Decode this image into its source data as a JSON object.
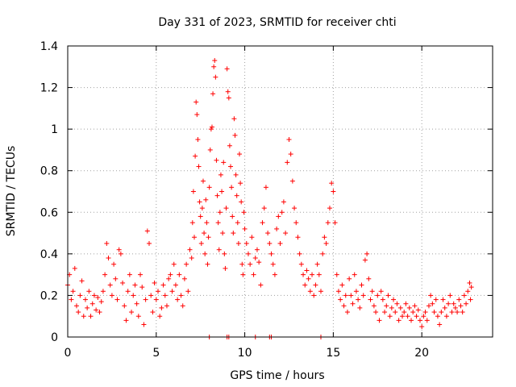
{
  "chart_data": {
    "type": "scatter",
    "title": "Day 331 of 2023, SRMTID for receiver chti",
    "xlabel": "GPS time / hours",
    "ylabel": "SRMTID / TECUs",
    "xlim": [
      0,
      24
    ],
    "ylim": [
      0,
      1.4
    ],
    "xticks": [
      0,
      5,
      10,
      15,
      20
    ],
    "xtick_labels": [
      "0",
      "5",
      "10",
      "15",
      "20"
    ],
    "yticks": [
      0,
      0.2,
      0.4,
      0.6,
      0.8,
      1.0,
      1.2,
      1.4
    ],
    "ytick_labels": [
      "0",
      "0.2",
      "0.4",
      "0.6",
      "0.8",
      "1",
      "1.2",
      "1.4"
    ],
    "grid": true,
    "marker": "+",
    "color": "#ff0000",
    "series": [
      {
        "name": "SRMTID",
        "points": [
          [
            0.0,
            0.25
          ],
          [
            0.1,
            0.3
          ],
          [
            0.2,
            0.18
          ],
          [
            0.3,
            0.22
          ],
          [
            0.4,
            0.33
          ],
          [
            0.5,
            0.15
          ],
          [
            0.6,
            0.12
          ],
          [
            0.7,
            0.2
          ],
          [
            0.8,
            0.27
          ],
          [
            0.9,
            0.1
          ],
          [
            1.0,
            0.18
          ],
          [
            1.1,
            0.14
          ],
          [
            1.2,
            0.22
          ],
          [
            1.3,
            0.1
          ],
          [
            1.4,
            0.16
          ],
          [
            1.5,
            0.2
          ],
          [
            1.6,
            0.13
          ],
          [
            1.7,
            0.19
          ],
          [
            1.8,
            0.12
          ],
          [
            1.9,
            0.17
          ],
          [
            2.0,
            0.22
          ],
          [
            2.1,
            0.3
          ],
          [
            2.2,
            0.45
          ],
          [
            2.3,
            0.38
          ],
          [
            2.4,
            0.25
          ],
          [
            2.5,
            0.2
          ],
          [
            2.6,
            0.35
          ],
          [
            2.7,
            0.28
          ],
          [
            2.8,
            0.18
          ],
          [
            2.9,
            0.42
          ],
          [
            3.0,
            0.4
          ],
          [
            3.1,
            0.26
          ],
          [
            3.2,
            0.15
          ],
          [
            3.3,
            0.08
          ],
          [
            3.4,
            0.22
          ],
          [
            3.5,
            0.3
          ],
          [
            3.6,
            0.12
          ],
          [
            3.7,
            0.2
          ],
          [
            3.8,
            0.25
          ],
          [
            3.9,
            0.16
          ],
          [
            4.0,
            0.1
          ],
          [
            4.1,
            0.3
          ],
          [
            4.2,
            0.24
          ],
          [
            4.3,
            0.06
          ],
          [
            4.4,
            0.18
          ],
          [
            4.5,
            0.51
          ],
          [
            4.6,
            0.45
          ],
          [
            4.7,
            0.2
          ],
          [
            4.8,
            0.12
          ],
          [
            4.9,
            0.26
          ],
          [
            5.0,
            0.18
          ],
          [
            5.1,
            0.22
          ],
          [
            5.2,
            0.1
          ],
          [
            5.3,
            0.14
          ],
          [
            5.4,
            0.25
          ],
          [
            5.5,
            0.2
          ],
          [
            5.6,
            0.15
          ],
          [
            5.7,
            0.28
          ],
          [
            5.8,
            0.3
          ],
          [
            5.9,
            0.22
          ],
          [
            6.0,
            0.35
          ],
          [
            6.1,
            0.25
          ],
          [
            6.2,
            0.18
          ],
          [
            6.3,
            0.3
          ],
          [
            6.4,
            0.2
          ],
          [
            6.5,
            0.15
          ],
          [
            6.6,
            0.28
          ],
          [
            6.7,
            0.35
          ],
          [
            6.8,
            0.22
          ],
          [
            6.9,
            0.42
          ],
          [
            7.0,
            0.38
          ],
          [
            7.05,
            0.55
          ],
          [
            7.1,
            0.7
          ],
          [
            7.15,
            0.48
          ],
          [
            7.2,
            0.87
          ],
          [
            7.25,
            1.13
          ],
          [
            7.3,
            1.07
          ],
          [
            7.35,
            0.95
          ],
          [
            7.4,
            0.82
          ],
          [
            7.45,
            0.65
          ],
          [
            7.5,
            0.58
          ],
          [
            7.55,
            0.45
          ],
          [
            7.6,
            0.62
          ],
          [
            7.65,
            0.75
          ],
          [
            7.7,
            0.5
          ],
          [
            7.75,
            0.4
          ],
          [
            7.8,
            0.66
          ],
          [
            7.85,
            0.55
          ],
          [
            7.9,
            0.35
          ],
          [
            7.95,
            0.48
          ],
          [
            8.0,
            0.72
          ],
          [
            8.05,
            0.9
          ],
          [
            8.1,
            1.0
          ],
          [
            8.15,
            1.01
          ],
          [
            8.2,
            1.17
          ],
          [
            8.25,
            1.3
          ],
          [
            8.3,
            1.33
          ],
          [
            8.35,
            1.25
          ],
          [
            8.4,
            0.85
          ],
          [
            8.45,
            0.68
          ],
          [
            8.5,
            0.55
          ],
          [
            8.55,
            0.42
          ],
          [
            8.6,
            0.6
          ],
          [
            8.65,
            0.78
          ],
          [
            8.7,
            0.7
          ],
          [
            8.75,
            0.5
          ],
          [
            8.8,
            0.84
          ],
          [
            8.85,
            0.4
          ],
          [
            8.9,
            0.33
          ],
          [
            8.95,
            0.62
          ],
          [
            9.0,
            1.29
          ],
          [
            9.05,
            1.18
          ],
          [
            9.1,
            1.15
          ],
          [
            9.15,
            0.92
          ],
          [
            9.2,
            0.82
          ],
          [
            9.25,
            0.72
          ],
          [
            9.3,
            0.58
          ],
          [
            9.35,
            0.5
          ],
          [
            9.4,
            1.05
          ],
          [
            9.45,
            0.97
          ],
          [
            9.5,
            0.78
          ],
          [
            9.55,
            0.68
          ],
          [
            9.6,
            0.55
          ],
          [
            9.65,
            0.45
          ],
          [
            9.7,
            0.88
          ],
          [
            9.75,
            0.74
          ],
          [
            9.8,
            0.65
          ],
          [
            9.85,
            0.35
          ],
          [
            9.9,
            0.3
          ],
          [
            9.95,
            0.6
          ],
          [
            10.0,
            0.52
          ],
          [
            10.1,
            0.45
          ],
          [
            10.2,
            0.4
          ],
          [
            10.3,
            0.35
          ],
          [
            10.4,
            0.48
          ],
          [
            10.5,
            0.3
          ],
          [
            10.6,
            0.38
          ],
          [
            10.7,
            0.42
          ],
          [
            10.8,
            0.36
          ],
          [
            10.9,
            0.25
          ],
          [
            11.0,
            0.55
          ],
          [
            11.1,
            0.62
          ],
          [
            11.2,
            0.72
          ],
          [
            11.3,
            0.5
          ],
          [
            11.4,
            0.45
          ],
          [
            11.5,
            0.4
          ],
          [
            11.6,
            0.35
          ],
          [
            11.7,
            0.3
          ],
          [
            11.8,
            0.52
          ],
          [
            11.9,
            0.58
          ],
          [
            12.0,
            0.45
          ],
          [
            12.1,
            0.6
          ],
          [
            12.2,
            0.65
          ],
          [
            12.3,
            0.5
          ],
          [
            12.4,
            0.84
          ],
          [
            12.5,
            0.95
          ],
          [
            12.6,
            0.88
          ],
          [
            12.7,
            0.75
          ],
          [
            12.8,
            0.62
          ],
          [
            12.9,
            0.55
          ],
          [
            13.0,
            0.48
          ],
          [
            13.1,
            0.4
          ],
          [
            13.2,
            0.35
          ],
          [
            13.3,
            0.3
          ],
          [
            13.4,
            0.25
          ],
          [
            13.5,
            0.32
          ],
          [
            13.6,
            0.28
          ],
          [
            13.7,
            0.22
          ],
          [
            13.8,
            0.3
          ],
          [
            13.9,
            0.2
          ],
          [
            14.0,
            0.25
          ],
          [
            14.1,
            0.35
          ],
          [
            14.2,
            0.3
          ],
          [
            14.3,
            0.22
          ],
          [
            14.4,
            0.4
          ],
          [
            14.5,
            0.48
          ],
          [
            14.6,
            0.45
          ],
          [
            14.7,
            0.55
          ],
          [
            14.8,
            0.62
          ],
          [
            14.9,
            0.74
          ],
          [
            15.0,
            0.7
          ],
          [
            15.1,
            0.55
          ],
          [
            15.2,
            0.3
          ],
          [
            15.3,
            0.22
          ],
          [
            15.4,
            0.18
          ],
          [
            15.5,
            0.25
          ],
          [
            15.6,
            0.15
          ],
          [
            15.7,
            0.2
          ],
          [
            15.8,
            0.12
          ],
          [
            15.9,
            0.28
          ],
          [
            16.0,
            0.2
          ],
          [
            16.1,
            0.16
          ],
          [
            16.2,
            0.3
          ],
          [
            16.3,
            0.22
          ],
          [
            16.4,
            0.18
          ],
          [
            16.5,
            0.14
          ],
          [
            16.6,
            0.25
          ],
          [
            16.7,
            0.2
          ],
          [
            16.8,
            0.37
          ],
          [
            16.9,
            0.4
          ],
          [
            17.0,
            0.28
          ],
          [
            17.1,
            0.18
          ],
          [
            17.2,
            0.22
          ],
          [
            17.3,
            0.15
          ],
          [
            17.4,
            0.12
          ],
          [
            17.5,
            0.2
          ],
          [
            17.6,
            0.08
          ],
          [
            17.7,
            0.22
          ],
          [
            17.8,
            0.18
          ],
          [
            17.9,
            0.12
          ],
          [
            18.0,
            0.15
          ],
          [
            18.1,
            0.2
          ],
          [
            18.2,
            0.1
          ],
          [
            18.3,
            0.14
          ],
          [
            18.4,
            0.18
          ],
          [
            18.5,
            0.12
          ],
          [
            18.6,
            0.16
          ],
          [
            18.7,
            0.08
          ],
          [
            18.8,
            0.14
          ],
          [
            18.9,
            0.1
          ],
          [
            19.0,
            0.12
          ],
          [
            19.1,
            0.16
          ],
          [
            19.2,
            0.1
          ],
          [
            19.3,
            0.14
          ],
          [
            19.4,
            0.08
          ],
          [
            19.5,
            0.12
          ],
          [
            19.6,
            0.15
          ],
          [
            19.7,
            0.1
          ],
          [
            19.8,
            0.13
          ],
          [
            19.9,
            0.08
          ],
          [
            20.0,
            0.05
          ],
          [
            20.1,
            0.1
          ],
          [
            20.2,
            0.12
          ],
          [
            20.3,
            0.08
          ],
          [
            20.4,
            0.15
          ],
          [
            20.5,
            0.2
          ],
          [
            20.6,
            0.16
          ],
          [
            20.7,
            0.12
          ],
          [
            20.8,
            0.18
          ],
          [
            20.9,
            0.1
          ],
          [
            21.0,
            0.06
          ],
          [
            21.1,
            0.12
          ],
          [
            21.2,
            0.18
          ],
          [
            21.3,
            0.14
          ],
          [
            21.4,
            0.1
          ],
          [
            21.5,
            0.16
          ],
          [
            21.6,
            0.2
          ],
          [
            21.7,
            0.12
          ],
          [
            21.8,
            0.16
          ],
          [
            21.9,
            0.14
          ],
          [
            22.0,
            0.12
          ],
          [
            22.1,
            0.18
          ],
          [
            22.2,
            0.15
          ],
          [
            22.3,
            0.12
          ],
          [
            22.4,
            0.2
          ],
          [
            22.5,
            0.16
          ],
          [
            22.6,
            0.22
          ],
          [
            22.7,
            0.26
          ],
          [
            22.75,
            0.18
          ],
          [
            22.8,
            0.24
          ],
          [
            8.0,
            0.0
          ],
          [
            9.0,
            0.0
          ],
          [
            9.1,
            0.0
          ],
          [
            10.6,
            0.0
          ],
          [
            11.4,
            0.0
          ],
          [
            11.5,
            0.0
          ],
          [
            14.3,
            0.0
          ]
        ]
      }
    ]
  }
}
